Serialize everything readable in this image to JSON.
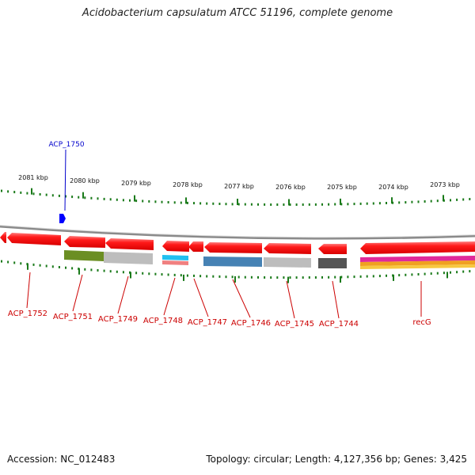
{
  "title": "Acidobacterium capsulatum ATCC 51196, complete genome",
  "footer": {
    "accession": "Accession: NC_012483",
    "topology": "Topology: circular; Length: 4,127,356 bp; Genes: 3,425"
  },
  "colors": {
    "gene_label": "#cc0000",
    "highlight_label": "#0000cc",
    "ruler_tick": "#1a7a1a",
    "backbone": "#888888",
    "gene_fill": "#ff0000"
  },
  "scale_labels": [
    "2081 kbp",
    "2080 kbp",
    "2079 kbp",
    "2078 kbp",
    "2077 kbp",
    "2076 kbp",
    "2075 kbp",
    "2074 kbp",
    "2073 kbp"
  ],
  "highlight_gene": {
    "label": "ACP_1750"
  },
  "gene_labels": [
    "ACP_1752",
    "ACP_1751",
    "ACP_1749",
    "ACP_1748",
    "ACP_1747",
    "ACP_1746",
    "ACP_1745",
    "ACP_1744",
    "recG"
  ]
}
